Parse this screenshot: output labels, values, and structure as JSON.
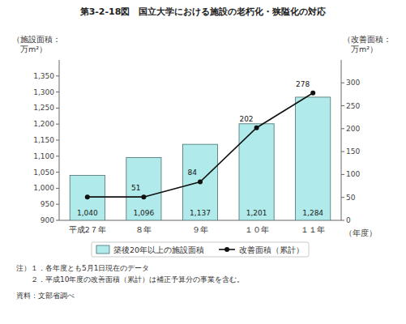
{
  "chart_data": {
    "type": "bar",
    "title": "第3-2-18図　国立大学における施設の老朽化・狭隘化の対応",
    "categories": [
      "平成2７年",
      "８年",
      "９年",
      "１０年",
      "１１年"
    ],
    "series": [
      {
        "name": "築後20年以上の施設面積",
        "type": "bar",
        "color": "#b0eaea",
        "values": [
          1040,
          1096,
          1137,
          1201,
          1284
        ],
        "value_labels": [
          "1,040",
          "1,096",
          "1,137",
          "1,201",
          "1,284"
        ]
      },
      {
        "name": "改善面積（累計）",
        "type": "line",
        "axis": "y2",
        "color": "#111111",
        "marker": "circle",
        "values": [
          51,
          51,
          84,
          202,
          278
        ],
        "value_labels": [
          null,
          "51",
          "84",
          "202",
          "278"
        ]
      }
    ],
    "ylabel": [
      "（施設面積：",
      "　万m²）"
    ],
    "y2label": [
      "（改善面積：",
      "　万m²）"
    ],
    "xlabel": "（年度）",
    "ylim": [
      900,
      1400
    ],
    "yticks": [
      900,
      950,
      {
        "value": 1000,
        "label": "1,000"
      },
      {
        "value": 1050,
        "label": "1,050"
      },
      {
        "value": 1100,
        "label": "1,100"
      },
      {
        "value": 1150,
        "label": "1,150"
      },
      {
        "value": 1200,
        "label": "1,200"
      },
      {
        "value": 1250,
        "label": "1,250"
      },
      {
        "value": 1300,
        "label": "1,300"
      },
      {
        "value": 1350,
        "label": "1,350"
      }
    ],
    "y2lim": [
      0,
      350
    ],
    "y2ticks": [
      0,
      50,
      100,
      150,
      200,
      250,
      300
    ],
    "grid": false,
    "legend": "bottom",
    "data_labels": true,
    "annotations": [
      "注）１．各年度とも5月1日現在のデータ",
      "　　２．平成10年度の改善面積（累計）は補正予算分の事業を含む。",
      "資料：文部省調べ"
    ]
  }
}
